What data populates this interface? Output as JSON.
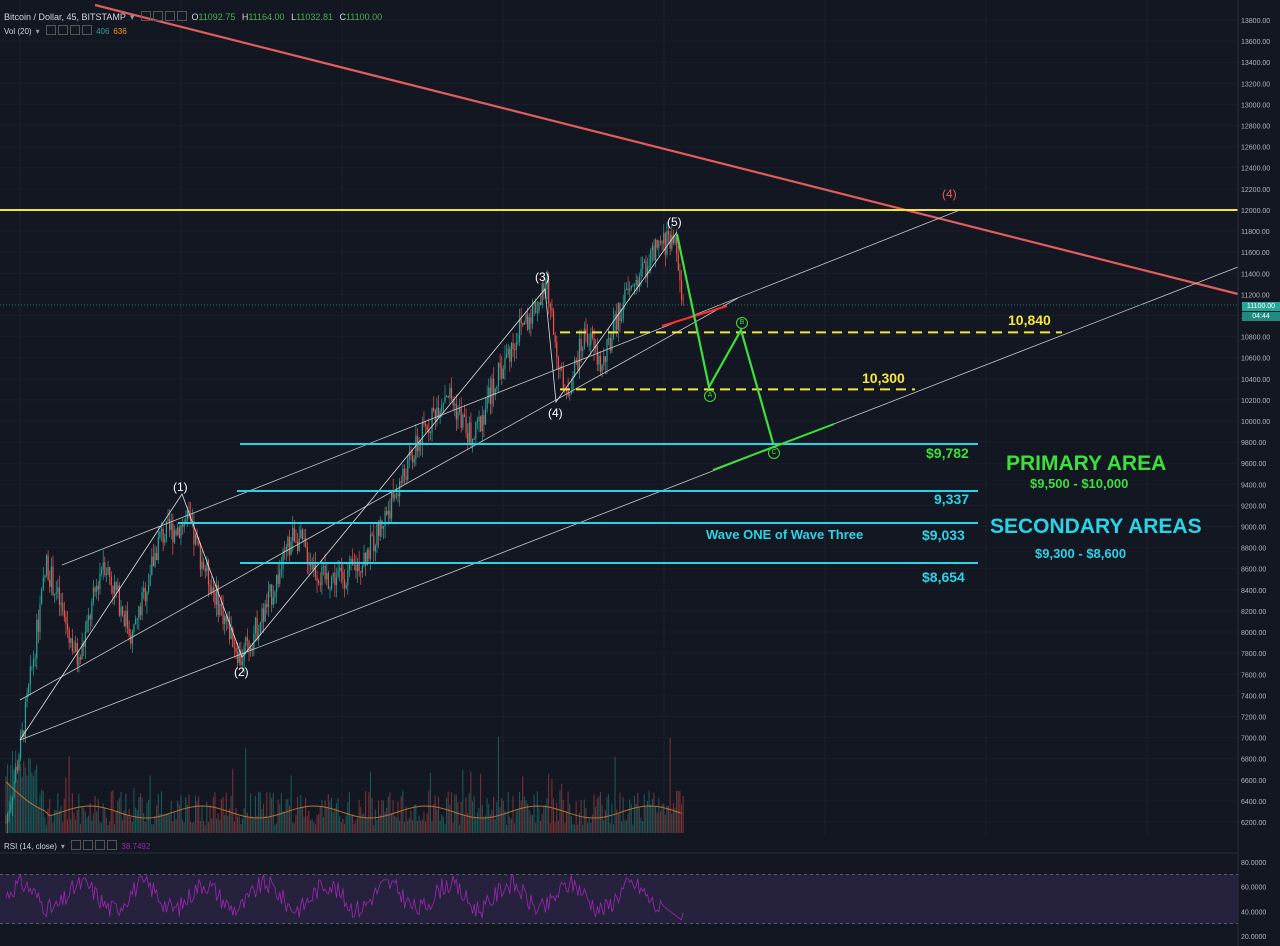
{
  "header": {
    "symbol": "Bitcoin / Dollar, 45, BITSTAMP",
    "open_key": "O",
    "open": "11092.75",
    "high_key": "H",
    "high": "11164.00",
    "low_key": "L",
    "low": "11032.81",
    "close_key": "C",
    "close": "11100.00",
    "vol_label": "Vol (20)",
    "vol_a": "406",
    "vol_b": "636"
  },
  "rsi": {
    "label": "RSI (14, close)",
    "value": "38.7492"
  },
  "price_axis": {
    "ticks": [
      "13800.00",
      "13600.00",
      "13400.00",
      "13200.00",
      "13000.00",
      "12800.00",
      "12600.00",
      "12400.00",
      "12200.00",
      "12000.00",
      "11800.00",
      "11600.00",
      "11400.00",
      "11200.00",
      "11000.00",
      "10800.00",
      "10600.00",
      "10400.00",
      "10200.00",
      "10000.00",
      "9800.00",
      "9600.00",
      "9400.00",
      "9200.00",
      "9000.00",
      "8800.00",
      "8600.00",
      "8400.00",
      "8200.00",
      "8000.00",
      "7800.00",
      "7600.00",
      "7400.00",
      "7200.00",
      "7000.00",
      "6800.00",
      "6600.00",
      "6400.00",
      "6200.00"
    ],
    "current_price": "11100.00",
    "countdown": "04:44"
  },
  "rsi_axis": {
    "ticks": [
      "80.0000",
      "60.0000",
      "40.0000",
      "20.0000"
    ]
  },
  "waves": {
    "w1": "(1)",
    "w2": "(2)",
    "w3": "(3)",
    "w4": "(4)",
    "w5": "(5)",
    "big4": "(4)",
    "a": "A",
    "b": "B",
    "c": "C"
  },
  "levels": {
    "l10840": "10,840",
    "l10300": "10,300",
    "l9782": "$9,782",
    "l9337": "9,337",
    "l9033": "$9,033",
    "l8654": "$8,654",
    "wave_one": "Wave ONE of Wave Three"
  },
  "areas": {
    "primary_title": "PRIMARY AREA",
    "primary_range": "$9,500 - $10,000",
    "secondary_title": "SECONDARY AREAS",
    "secondary_range": "$9,300 - $8,600"
  },
  "colors": {
    "up": "#26a69a",
    "down": "#ef5350",
    "bg": "#131722",
    "resistance": "#f5e63c",
    "cyan": "#2ad4e8",
    "green": "#3cdf3c",
    "trend": "#e35d5d"
  },
  "chart_data": {
    "type": "candlestick",
    "title": "",
    "ylim": [
      6100,
      13900
    ],
    "rsi_ylim": [
      20,
      80
    ],
    "horizontal_levels": [
      12000,
      10840,
      10300,
      9782,
      9337,
      9033,
      8654
    ],
    "elliott_waves": [
      {
        "label": "(1)",
        "price": 9050
      },
      {
        "label": "(2)",
        "price": 7750
      },
      {
        "label": "(3)",
        "price": 11250
      },
      {
        "label": "(4)",
        "price": 10200
      },
      {
        "label": "(5)",
        "price": 11780
      }
    ],
    "projected_abc": [
      {
        "label": "A",
        "price": 10300
      },
      {
        "label": "B",
        "price": 10840
      },
      {
        "label": "C",
        "price": 9782
      }
    ],
    "last_close": 11100.0,
    "rsi_last": 38.7492
  }
}
